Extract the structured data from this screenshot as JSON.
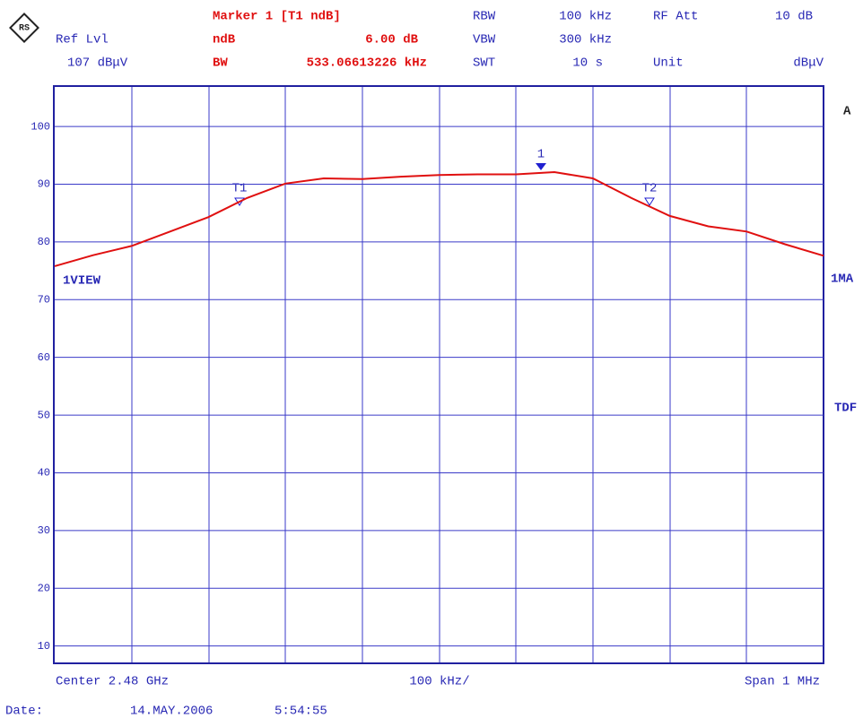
{
  "chart_data": {
    "type": "line",
    "header": {
      "ref_lvl_label": "Ref Lvl",
      "ref_lvl": "107 dBμV",
      "marker_title": "Marker 1 [T1 ndB]",
      "ndb_label": "ndB",
      "ndb": "6.00 dB",
      "bw_label": "BW",
      "bw": "533.06613226 kHz",
      "rbw_label": "RBW",
      "rbw": "100 kHz",
      "vbw_label": "VBW",
      "vbw": "300 kHz",
      "swt_label": "SWT",
      "swt": "10 s",
      "rf_att_label": "RF Att",
      "rf_att": "10 dB",
      "unit_label": "Unit",
      "unit": "dBμV"
    },
    "side_labels": {
      "trace": "A",
      "detector": "1MA",
      "tdf": "TDF",
      "view": "1VIEW"
    },
    "markers": {
      "m1": "1",
      "t1": "T1",
      "t2": "T2"
    },
    "footer": {
      "center": "Center 2.48 GHz",
      "div": "100 kHz/",
      "span": "Span 1 MHz",
      "date_label": "Date:",
      "date": "14.MAY.2006",
      "time": "5:54:55"
    },
    "color": "#e01010",
    "values": [
      75.8,
      77.7,
      79.3,
      81.8,
      84.3,
      87.6,
      90.1,
      91.0,
      90.9,
      91.3,
      91.6,
      91.7,
      91.7,
      92.1,
      91.0,
      87.6,
      84.5,
      82.7,
      81.8,
      79.6,
      77.6
    ],
    "ylim": [
      7,
      107
    ],
    "yticks": [
      10,
      20,
      30,
      40,
      50,
      60,
      70,
      80,
      90,
      100
    ],
    "grid": true
  }
}
